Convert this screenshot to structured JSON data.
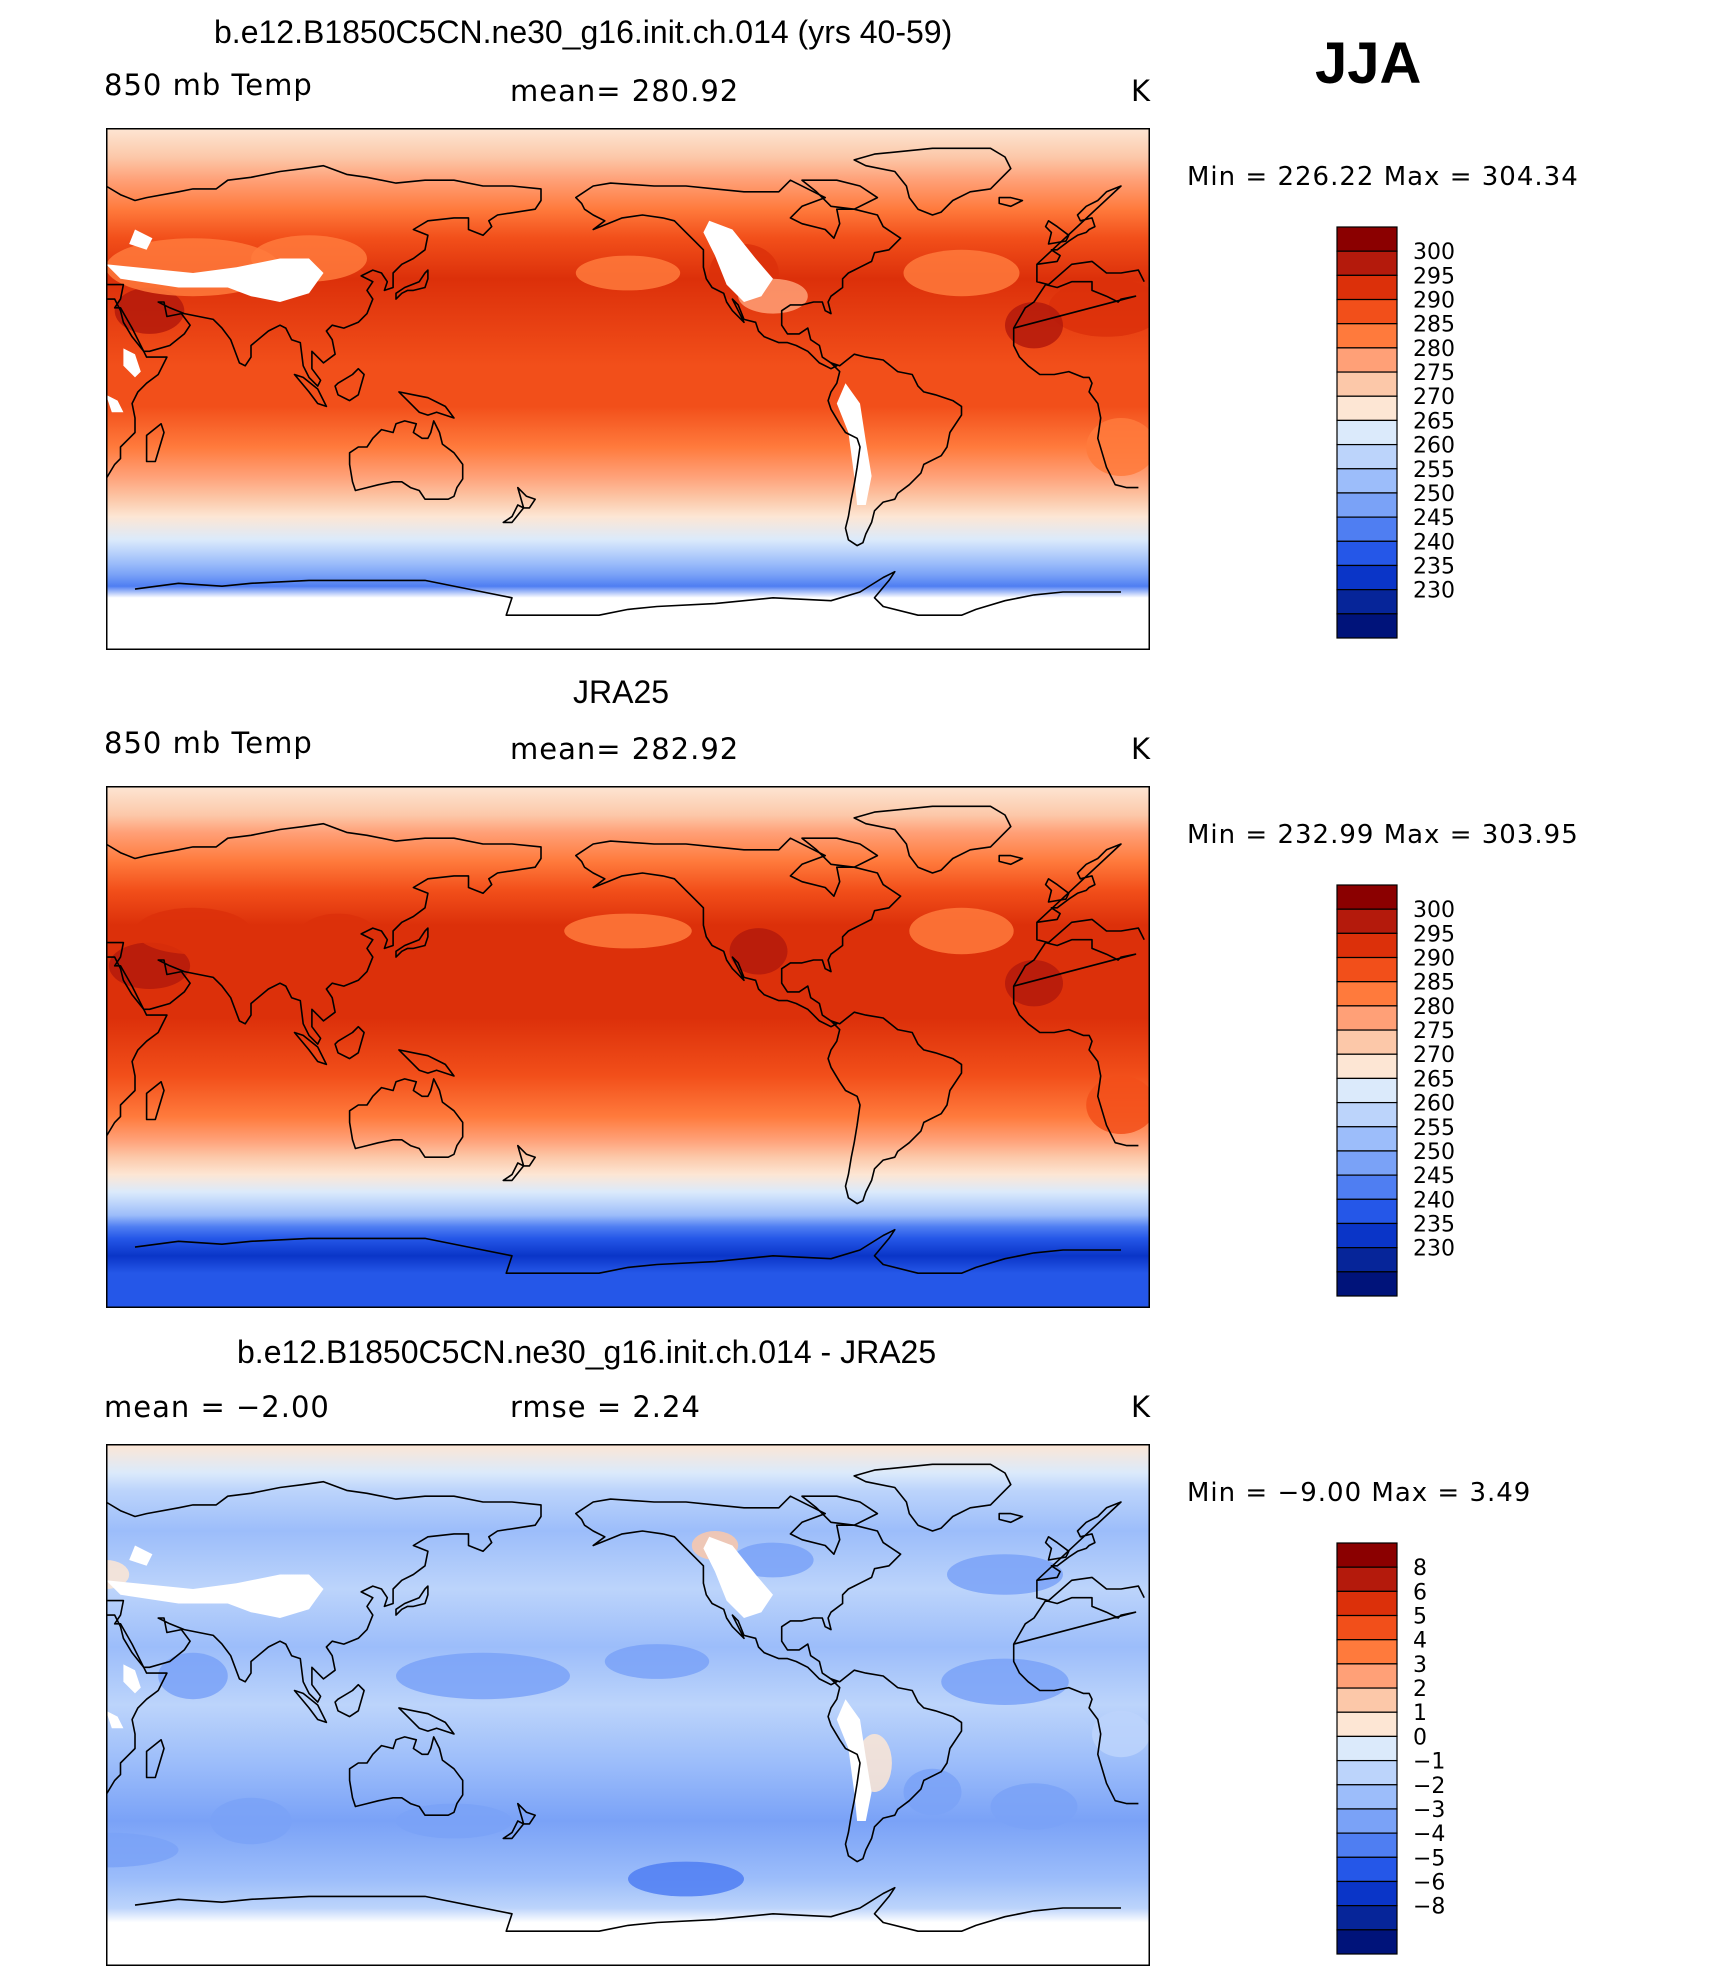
{
  "season": "JJA",
  "panels": [
    {
      "title": "b.e12.B1850C5CN.ne30_g16.init.ch.014 (yrs 40-59)",
      "left_label": "850 mb Temp",
      "center_label": "mean=  280.92",
      "units": "K",
      "minmax": "Min  =  226.22  Max  =  304.34"
    },
    {
      "title": "JRA25",
      "left_label": "850 mb Temp",
      "center_label": "mean=  282.92",
      "units": "K",
      "minmax": "Min  =  232.99  Max  =  303.95"
    },
    {
      "title": "b.e12.B1850C5CN.ne30_g16.init.ch.014 - JRA25",
      "left_label": "mean  =    −2.00",
      "center_label": "rmse  =     2.24",
      "units": "K",
      "minmax": "Min  =    −9.00  Max  =     3.49"
    }
  ],
  "chart_data": [
    {
      "type": "heatmap",
      "title": "b.e12.B1850C5CN.ne30_g16.init.ch.014 (yrs 40-59)",
      "variable": "850 mb Temp",
      "units": "K",
      "mean": 280.92,
      "min": 226.22,
      "max": 304.34,
      "legend_levels": [
        "300",
        "295",
        "290",
        "285",
        "280",
        "275",
        "270",
        "265",
        "260",
        "255",
        "250",
        "245",
        "240",
        "235",
        "230"
      ],
      "legend_colors": [
        "#8b0000",
        "#b41a0c",
        "#dc300a",
        "#f24f1a",
        "#ff7a3c",
        "#ffa077",
        "#fcc8a9",
        "#fde6d4",
        "#dbeafb",
        "#bcd4fb",
        "#9cbdfa",
        "#7aa2f7",
        "#4f7ef2",
        "#2557e8",
        "#0a35c8",
        "#062599",
        "#00137a"
      ]
    },
    {
      "type": "heatmap",
      "title": "JRA25",
      "variable": "850 mb Temp",
      "units": "K",
      "mean": 282.92,
      "min": 232.99,
      "max": 303.95,
      "legend_levels": [
        "300",
        "295",
        "290",
        "285",
        "280",
        "275",
        "270",
        "265",
        "260",
        "255",
        "250",
        "245",
        "240",
        "235",
        "230"
      ],
      "legend_colors": [
        "#8b0000",
        "#b41a0c",
        "#dc300a",
        "#f24f1a",
        "#ff7a3c",
        "#ffa077",
        "#fcc8a9",
        "#fde6d4",
        "#dbeafb",
        "#bcd4fb",
        "#9cbdfa",
        "#7aa2f7",
        "#4f7ef2",
        "#2557e8",
        "#0a35c8",
        "#062599",
        "#00137a"
      ]
    },
    {
      "type": "heatmap",
      "title": "b.e12.B1850C5CN.ne30_g16.init.ch.014 - JRA25",
      "units": "K",
      "mean": -2.0,
      "rmse": 2.24,
      "min": -9.0,
      "max": 3.49,
      "legend_levels": [
        "8",
        "6",
        "5",
        "4",
        "3",
        "2",
        "1",
        "0",
        "−1",
        "−2",
        "−3",
        "−4",
        "−5",
        "−6",
        "−8"
      ],
      "legend_colors": [
        "#8b0000",
        "#b41a0c",
        "#dc300a",
        "#f24f1a",
        "#ff7a3c",
        "#ffa077",
        "#fcc8a9",
        "#fde6d4",
        "#dbeafb",
        "#bcd4fb",
        "#9cbdfa",
        "#7aa2f7",
        "#4f7ef2",
        "#2557e8",
        "#0a35c8",
        "#062599",
        "#00137a"
      ]
    }
  ]
}
